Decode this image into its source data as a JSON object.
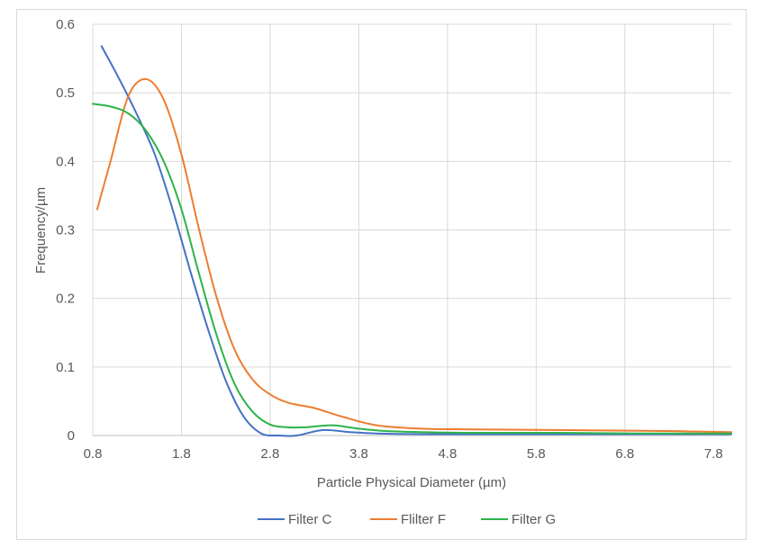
{
  "chart_data": {
    "type": "line",
    "title": "",
    "xlabel": "Particle Physical Diameter (µm)",
    "ylabel": "Frequency/µm",
    "xlim": [
      0.8,
      8.0
    ],
    "ylim": [
      0,
      0.6
    ],
    "x_ticks": [
      "0.8",
      "1.8",
      "2.8",
      "3.8",
      "4.8",
      "5.8",
      "6.8",
      "7.8"
    ],
    "y_ticks": [
      "0",
      "0.1",
      "0.2",
      "0.3",
      "0.4",
      "0.5",
      "0.6"
    ],
    "grid": "vertical and horizontal",
    "legend": "bottom",
    "series": [
      {
        "name": "Filter C",
        "color": "#4472c4",
        "x": [
          0.9,
          1.1,
          1.3,
          1.5,
          1.7,
          1.9,
          2.1,
          2.3,
          2.5,
          2.7,
          2.9,
          3.1,
          3.4,
          3.7,
          4.0,
          4.5,
          5.0,
          6.0,
          7.0,
          8.0
        ],
        "y": [
          0.568,
          0.52,
          0.468,
          0.41,
          0.33,
          0.24,
          0.155,
          0.08,
          0.028,
          0.003,
          0.0,
          0.0,
          0.008,
          0.005,
          0.003,
          0.002,
          0.002,
          0.002,
          0.002,
          0.002
        ]
      },
      {
        "name": "Flilter F",
        "color": "#ed7d31",
        "x": [
          0.85,
          1.0,
          1.2,
          1.4,
          1.6,
          1.8,
          2.0,
          2.2,
          2.4,
          2.6,
          2.8,
          3.0,
          3.3,
          3.6,
          4.0,
          4.5,
          5.0,
          6.0,
          7.0,
          8.0
        ],
        "y": [
          0.33,
          0.4,
          0.495,
          0.52,
          0.49,
          0.41,
          0.3,
          0.2,
          0.125,
          0.082,
          0.06,
          0.048,
          0.04,
          0.028,
          0.015,
          0.01,
          0.009,
          0.008,
          0.007,
          0.005
        ]
      },
      {
        "name": "Filter G",
        "color": "#2db34a",
        "x": [
          0.8,
          1.0,
          1.2,
          1.4,
          1.6,
          1.8,
          2.0,
          2.2,
          2.4,
          2.6,
          2.8,
          3.0,
          3.2,
          3.5,
          3.8,
          4.2,
          5.0,
          6.0,
          7.0,
          8.0
        ],
        "y": [
          0.484,
          0.48,
          0.47,
          0.445,
          0.4,
          0.33,
          0.235,
          0.145,
          0.075,
          0.035,
          0.016,
          0.012,
          0.012,
          0.015,
          0.01,
          0.006,
          0.004,
          0.004,
          0.003,
          0.003
        ]
      }
    ]
  }
}
